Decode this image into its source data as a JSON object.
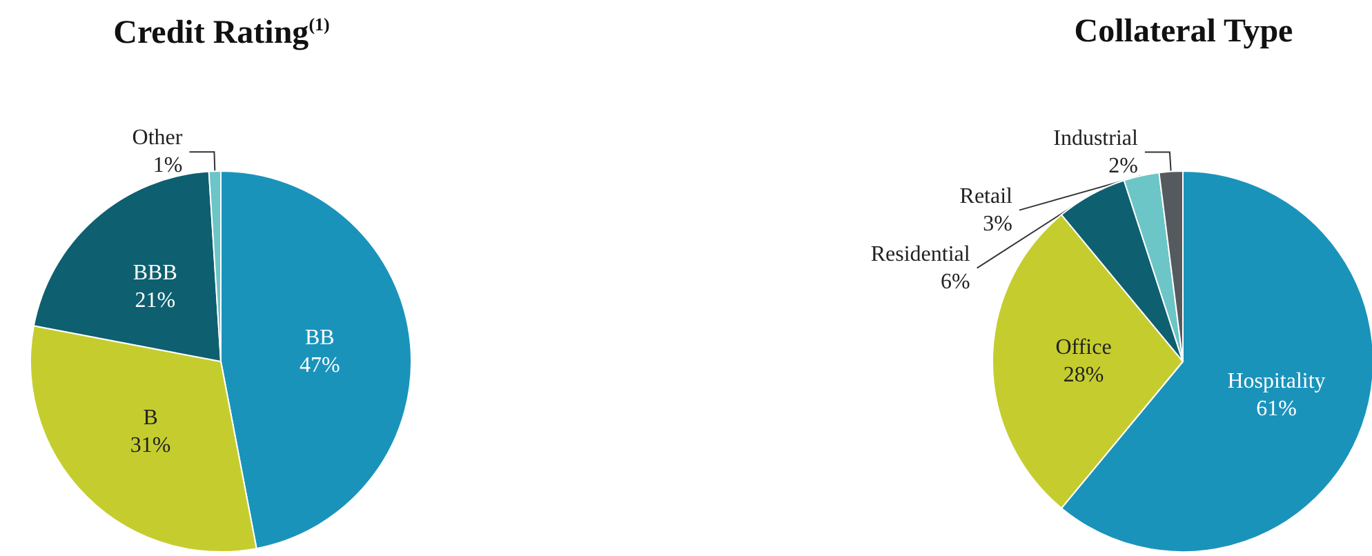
{
  "chart_data": [
    {
      "type": "pie",
      "title": "Credit Rating$^{(1)}$",
      "categories": [
        "BB",
        "B",
        "BBB",
        "Other"
      ],
      "values": [
        47,
        31,
        21,
        1
      ],
      "value_labels": [
        "47%",
        "31%",
        "21%",
        "1%"
      ],
      "colors": [
        "#1a93bb",
        "#c5cd2e",
        "#0e5f70",
        "#6cc5c6"
      ]
    },
    {
      "type": "pie",
      "title": "Collateral Type",
      "categories": [
        "Hospitality",
        "Office",
        "Residential",
        "Retail",
        "Industrial"
      ],
      "values": [
        61,
        28,
        6,
        3,
        2
      ],
      "value_labels": [
        "61%",
        "28%",
        "6%",
        "3%",
        "2%"
      ],
      "colors": [
        "#1a93bb",
        "#c5cd2e",
        "#0e5f70",
        "#6cc5c6",
        "#555a5e"
      ]
    }
  ]
}
